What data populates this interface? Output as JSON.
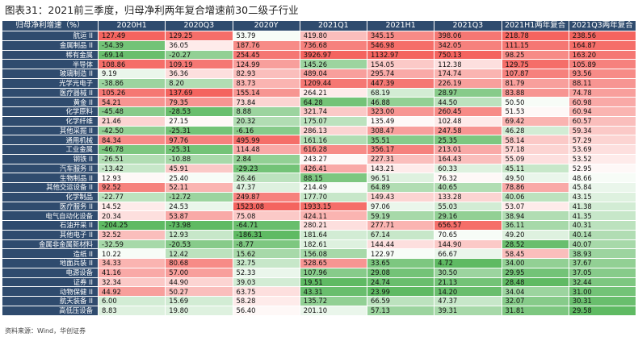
{
  "title": "图表31：2021前三季度，归母净利两年复合增速前30二级子行业",
  "columns": [
    "归母净利增速（%）",
    "2020H1",
    "2020Q3",
    "2020Y",
    "2021Q1",
    "2021H1",
    "2021Q3",
    "2021H1两年复合",
    "2021Q3两年复合"
  ],
  "rows": [
    {
      "name": "航运 II",
      "values": [
        "127.49",
        "129.25",
        "53.79",
        "419.80",
        "345.15",
        "398.06",
        "218.78",
        "238.56"
      ]
    },
    {
      "name": "金属制品 II",
      "values": [
        "-54.39",
        "36.05",
        "187.76",
        "736.68",
        "546.98",
        "342.05",
        "111.15",
        "164.87"
      ]
    },
    {
      "name": "稀有金属",
      "values": [
        "-69.14",
        "-20.27",
        "254.45",
        "3926.97",
        "1132.97",
        "750.13",
        "98.25",
        "163.20"
      ]
    },
    {
      "name": "半导体",
      "values": [
        "108.86",
        "109.19",
        "124.99",
        "145.26",
        "154.05",
        "112.38",
        "129.75",
        "105.89"
      ]
    },
    {
      "name": "玻璃制造 II",
      "values": [
        "9.19",
        "36.36",
        "82.93",
        "489.04",
        "295.74",
        "174.74",
        "107.87",
        "93.56"
      ]
    },
    {
      "name": "光学光电子",
      "values": [
        "-38.86",
        "8.20",
        "83.73",
        "1209.44",
        "447.39",
        "226.19",
        "81.79",
        "88.11"
      ]
    },
    {
      "name": "医疗器械 II",
      "values": [
        "105.26",
        "137.69",
        "155.14",
        "264.21",
        "68.19",
        "28.97",
        "83.88",
        "74.78"
      ]
    },
    {
      "name": "黄金 II",
      "values": [
        "54.21",
        "79.35",
        "73.84",
        "64.28",
        "46.88",
        "44.50",
        "50.50",
        "60.98"
      ]
    },
    {
      "name": "化学原料",
      "values": [
        "-45.48",
        "-28.53",
        "8.88",
        "321.74",
        "323.00",
        "260.45",
        "51.53",
        "60.94"
      ]
    },
    {
      "name": "化学纤维",
      "values": [
        "21.46",
        "27.15",
        "20.32",
        "175.07",
        "135.49",
        "102.48",
        "69.42",
        "60.57"
      ]
    },
    {
      "name": "其他采掘 II",
      "values": [
        "-42.50",
        "-25.31",
        "-6.16",
        "286.13",
        "308.47",
        "247.58",
        "46.28",
        "59.34"
      ]
    },
    {
      "name": "通用机械",
      "values": [
        "84.34",
        "97.76",
        "495.99",
        "161.16",
        "35.51",
        "25.35",
        "58.14",
        "57.29"
      ]
    },
    {
      "name": "工业金属",
      "values": [
        "-46.78",
        "-25.31",
        "114.48",
        "616.28",
        "356.17",
        "213.01",
        "57.18",
        "53.69"
      ]
    },
    {
      "name": "钢铁 II",
      "values": [
        "-26.51",
        "-10.88",
        "2.84",
        "243.27",
        "227.31",
        "164.43",
        "55.09",
        "53.52"
      ]
    },
    {
      "name": "汽车服务 II",
      "values": [
        "-13.42",
        "45.91",
        "-29.23",
        "426.41",
        "143.21",
        "60.33",
        "45.11",
        "52.95"
      ]
    },
    {
      "name": "生物制品 II",
      "values": [
        "12.93",
        "25.40",
        "26.46",
        "88.15",
        "96.51",
        "76.32",
        "49.50",
        "48.66"
      ]
    },
    {
      "name": "其他交运设备 II",
      "values": [
        "92.52",
        "52.11",
        "47.37",
        "214.49",
        "64.89",
        "40.65",
        "78.86",
        "45.84"
      ]
    },
    {
      "name": "化学制品",
      "values": [
        "-22.77",
        "-12.72",
        "249.87",
        "177.70",
        "149.43",
        "133.28",
        "40.06",
        "43.15"
      ]
    },
    {
      "name": "医疗服务 II",
      "values": [
        "14.52",
        "24.53",
        "1523.08",
        "1933.15",
        "97.06",
        "55.03",
        "53.07",
        "41.38"
      ]
    },
    {
      "name": "电气自动化设备",
      "values": [
        "20.34",
        "53.87",
        "75.08",
        "424.11",
        "59.19",
        "29.16",
        "38.94",
        "41.35"
      ]
    },
    {
      "name": "石油开采 II",
      "values": [
        "-204.25",
        "-73.98",
        "-64.71",
        "280.21",
        "277.71",
        "656.57",
        "36.11",
        "40.31"
      ]
    },
    {
      "name": "其他电子 II",
      "values": [
        "32.52",
        "12.93",
        "-186.31",
        "181.64",
        "67.14",
        "70.65",
        "49.20",
        "40.14"
      ]
    },
    {
      "name": "金属非金属新材料",
      "values": [
        "-32.59",
        "-20.53",
        "-8.77",
        "182.61",
        "144.44",
        "144.90",
        "28.52",
        "40.07"
      ]
    },
    {
      "name": "造纸 II",
      "values": [
        "10.22",
        "12.42",
        "15.62",
        "156.08",
        "122.97",
        "66.67",
        "58.45",
        "38.93"
      ]
    },
    {
      "name": "地面兵装 II",
      "values": [
        "34.33",
        "80.68",
        "32.75",
        "528.65",
        "33.65",
        "4.72",
        "34.00",
        "37.67"
      ]
    },
    {
      "name": "电源设备",
      "values": [
        "41.16",
        "57.00",
        "52.33",
        "107.96",
        "29.08",
        "30.50",
        "29.95",
        "37.05"
      ]
    },
    {
      "name": "证券 II",
      "values": [
        "32.34",
        "44.90",
        "39.03",
        "19.51",
        "24.74",
        "21.13",
        "28.48",
        "32.44"
      ]
    },
    {
      "name": "动物保健 II",
      "values": [
        "44.92",
        "50.27",
        "63.75",
        "43.31",
        "23.99",
        "14.20",
        "34.04",
        "31.00"
      ]
    },
    {
      "name": "航天装备 II",
      "values": [
        "6.00",
        "15.69",
        "58.28",
        "135.72",
        "66.59",
        "47.37",
        "32.07",
        "30.31"
      ]
    },
    {
      "name": "高低压设备",
      "values": [
        "8.83",
        "19.80",
        "56.40",
        "201.10",
        "57.13",
        "39.31",
        "31.81",
        "29.58"
      ]
    }
  ],
  "footer": "资料来源：Wind，华创证券",
  "colors": {
    "header_bg": "#2f4b6e",
    "header_text": "#ffffff",
    "high": "#f4645f",
    "mid": "#ffffff",
    "low": "#5fba63"
  }
}
